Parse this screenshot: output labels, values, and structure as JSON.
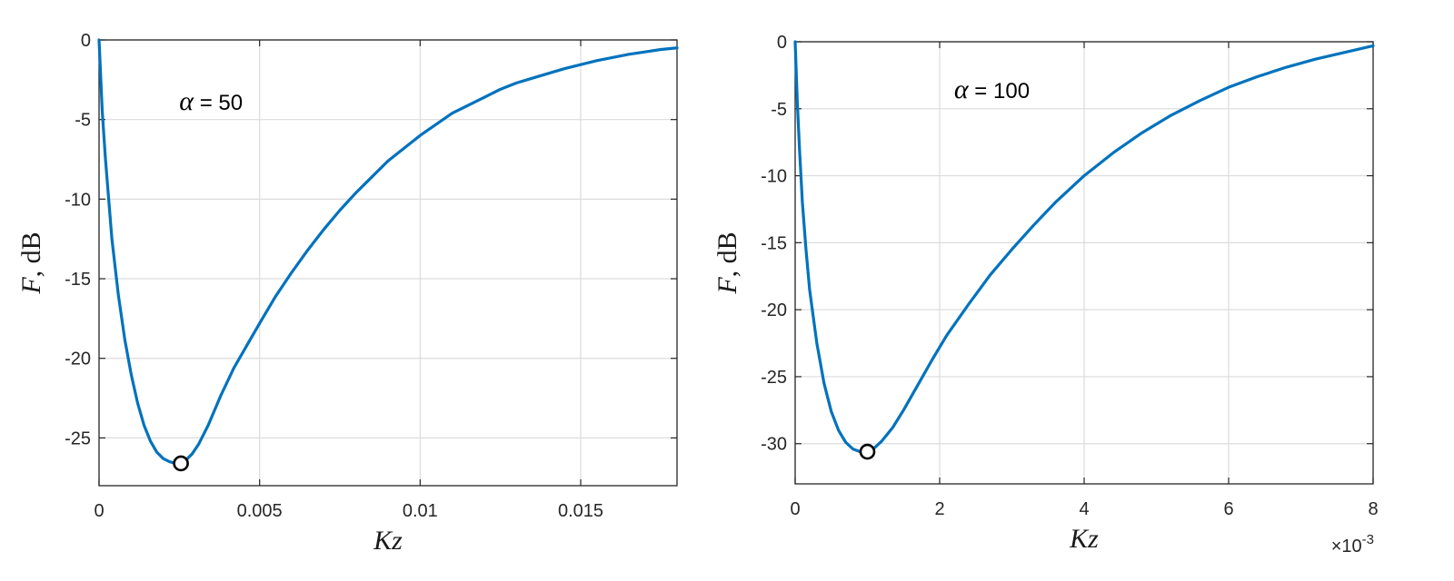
{
  "chart_data": [
    {
      "type": "line",
      "xlabel_var": "Kz",
      "ylabel_var": "F",
      "ylabel_unit": ", dB",
      "annotation": {
        "symbol": "α",
        "text": " = 50"
      },
      "xlim": [
        0,
        0.018
      ],
      "ylim": [
        -28,
        0
      ],
      "xticks": [
        0,
        0.005,
        0.01,
        0.015
      ],
      "xtick_labels": [
        "0",
        "0.005",
        "0.01",
        "0.015"
      ],
      "yticks": [
        0,
        -5,
        -10,
        -15,
        -20,
        -25
      ],
      "ytick_labels": [
        "0",
        "-5",
        "-10",
        "-15",
        "-20",
        "-25"
      ],
      "x_multiplier": "",
      "grid": true,
      "line_color": "#0072BD",
      "series": [
        {
          "x": [
            0,
            0.0001,
            0.0002,
            0.0003,
            0.0004,
            0.0006,
            0.0008,
            0.001,
            0.0012,
            0.0014,
            0.0016,
            0.0018,
            0.002,
            0.0022,
            0.0024,
            0.00255,
            0.0027,
            0.0029,
            0.0031,
            0.0034,
            0.0038,
            0.0042,
            0.0046,
            0.005,
            0.0055,
            0.006,
            0.0065,
            0.007,
            0.0075,
            0.008,
            0.0085,
            0.009,
            0.0095,
            0.01,
            0.0105,
            0.011,
            0.0115,
            0.012,
            0.0125,
            0.013,
            0.0135,
            0.014,
            0.0145,
            0.015,
            0.0155,
            0.016,
            0.0165,
            0.017,
            0.0175,
            0.018
          ],
          "y": [
            0,
            -4.5,
            -7.5,
            -10,
            -12.5,
            -16,
            -18.8,
            -21,
            -22.8,
            -24.2,
            -25.2,
            -25.9,
            -26.3,
            -26.5,
            -26.6,
            -26.6,
            -26.4,
            -26.0,
            -25.4,
            -24.2,
            -22.3,
            -20.6,
            -19.2,
            -17.8,
            -16.1,
            -14.6,
            -13.2,
            -11.9,
            -10.7,
            -9.6,
            -8.6,
            -7.6,
            -6.8,
            -6.0,
            -5.3,
            -4.6,
            -4.1,
            -3.6,
            -3.1,
            -2.7,
            -2.4,
            -2.1,
            -1.8,
            -1.55,
            -1.3,
            -1.1,
            -0.9,
            -0.75,
            -0.6,
            -0.5
          ]
        }
      ],
      "marker_point": {
        "x": 0.00255,
        "y": -26.6
      }
    },
    {
      "type": "line",
      "xlabel_var": "Kz",
      "ylabel_var": "F",
      "ylabel_unit": ", dB",
      "annotation": {
        "symbol": "α",
        "text": " = 100"
      },
      "xlim": [
        0,
        8
      ],
      "ylim": [
        -33,
        0
      ],
      "xticks": [
        0,
        2,
        4,
        6,
        8
      ],
      "xtick_labels": [
        "0",
        "2",
        "4",
        "6",
        "8"
      ],
      "yticks": [
        0,
        -5,
        -10,
        -15,
        -20,
        -25,
        -30
      ],
      "ytick_labels": [
        "0",
        "-5",
        "-10",
        "-15",
        "-20",
        "-25",
        "-30"
      ],
      "x_multiplier": "×10",
      "x_multiplier_exp": "-3",
      "grid": true,
      "line_color": "#0072BD",
      "series": [
        {
          "x": [
            0,
            0.03,
            0.06,
            0.1,
            0.15,
            0.2,
            0.3,
            0.4,
            0.5,
            0.6,
            0.7,
            0.8,
            0.9,
            1.0,
            1.1,
            1.2,
            1.35,
            1.5,
            1.7,
            1.9,
            2.1,
            2.4,
            2.7,
            3.0,
            3.3,
            3.6,
            4.0,
            4.4,
            4.8,
            5.2,
            5.6,
            6.0,
            6.4,
            6.8,
            7.2,
            7.6,
            8.0
          ],
          "y": [
            0,
            -4.5,
            -8,
            -12,
            -15.5,
            -18.5,
            -22.5,
            -25.5,
            -27.6,
            -29.0,
            -29.9,
            -30.4,
            -30.6,
            -30.6,
            -30.3,
            -29.8,
            -28.8,
            -27.5,
            -25.6,
            -23.7,
            -21.9,
            -19.6,
            -17.4,
            -15.5,
            -13.7,
            -12.0,
            -10.0,
            -8.3,
            -6.8,
            -5.5,
            -4.4,
            -3.4,
            -2.6,
            -1.9,
            -1.3,
            -0.8,
            -0.3
          ]
        }
      ],
      "marker_point": {
        "x": 1.0,
        "y": -30.6
      }
    }
  ]
}
